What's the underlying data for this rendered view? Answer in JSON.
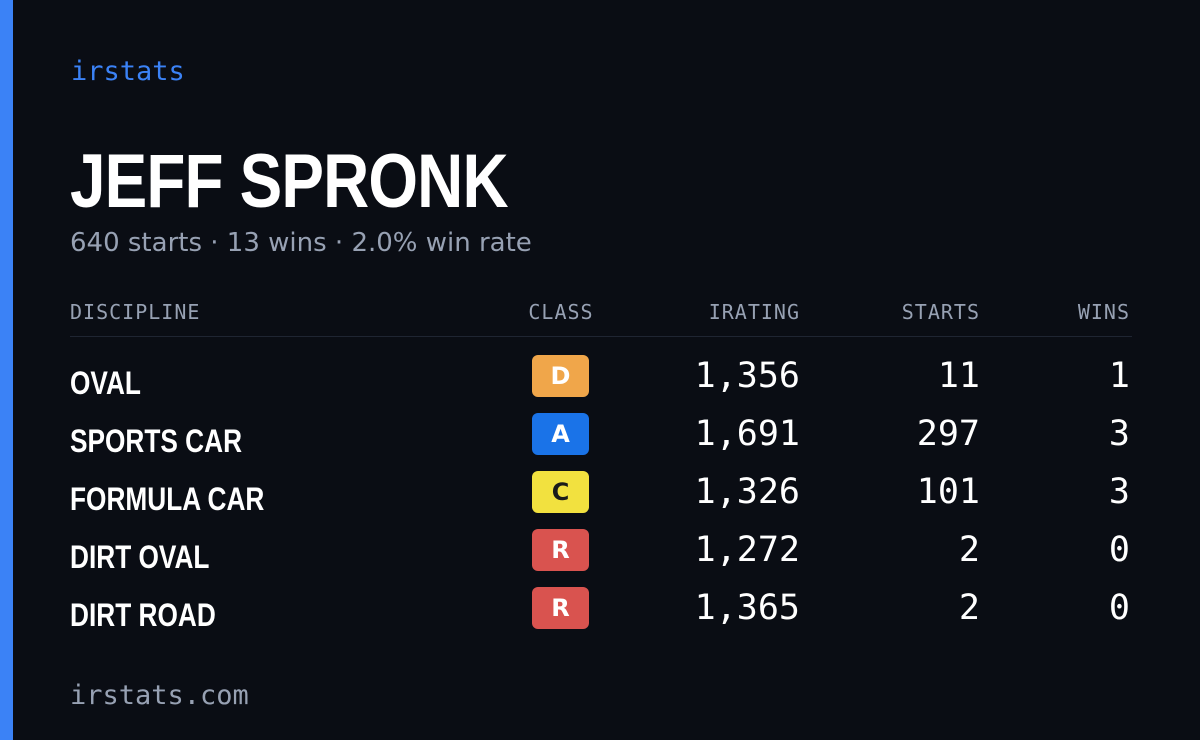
{
  "brand": "irstats",
  "driver": {
    "name": "JEFF SPRONK",
    "summary": "640 starts · 13 wins · 2.0% win rate"
  },
  "table": {
    "headers": {
      "discipline": "DISCIPLINE",
      "class": "CLASS",
      "irating": "IRATING",
      "starts": "STARTS",
      "wins": "WINS"
    },
    "rows": [
      {
        "discipline": "OVAL",
        "class": "D",
        "irating": "1,356",
        "starts": "11",
        "wins": "1"
      },
      {
        "discipline": "SPORTS CAR",
        "class": "A",
        "irating": "1,691",
        "starts": "297",
        "wins": "3"
      },
      {
        "discipline": "FORMULA CAR",
        "class": "C",
        "irating": "1,326",
        "starts": "101",
        "wins": "3"
      },
      {
        "discipline": "DIRT OVAL",
        "class": "R",
        "irating": "1,272",
        "starts": "2",
        "wins": "0"
      },
      {
        "discipline": "DIRT ROAD",
        "class": "R",
        "irating": "1,365",
        "starts": "2",
        "wins": "0"
      }
    ]
  },
  "class_colors": {
    "D": {
      "bg": "#f0a64a",
      "fg": "#ffffff"
    },
    "A": {
      "bg": "#1a73e8",
      "fg": "#ffffff"
    },
    "C": {
      "bg": "#f2e13f",
      "fg": "#1a1a1a"
    },
    "R": {
      "bg": "#d9534f",
      "fg": "#ffffff"
    }
  },
  "footer": "irstats.com",
  "colors": {
    "background": "#0a0d14",
    "accent": "#3b82f6",
    "muted_text": "#97a1b3"
  }
}
